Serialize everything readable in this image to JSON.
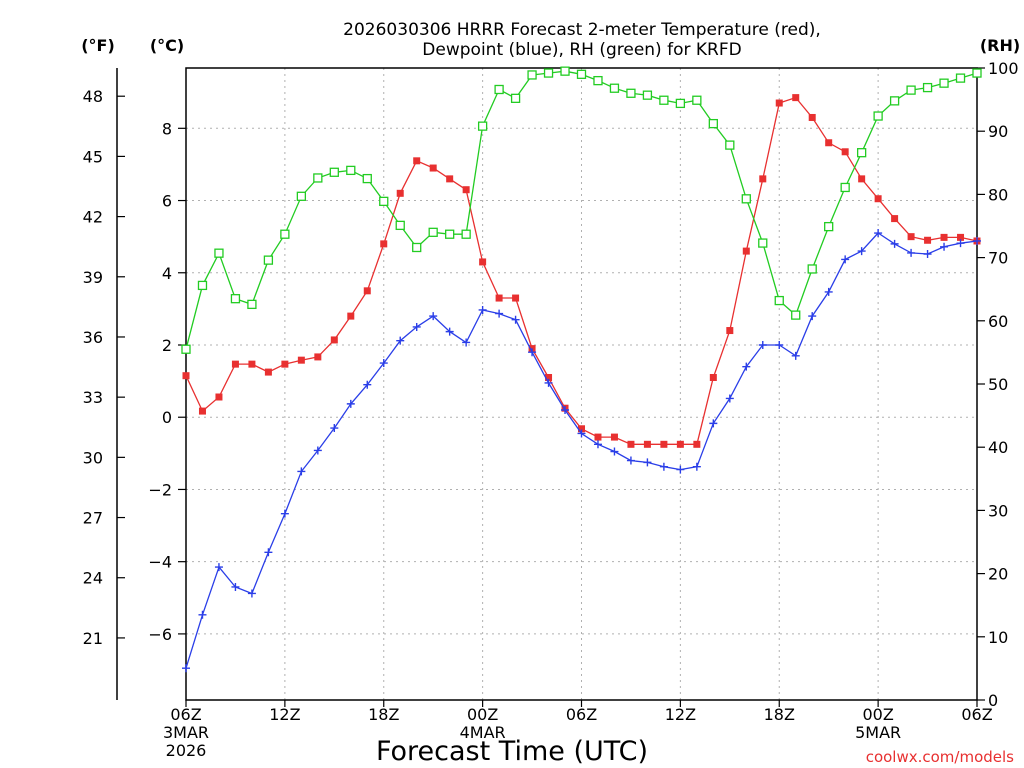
{
  "chart_data": {
    "type": "line",
    "title_line1": "2026030306 HRRR Forecast 2-meter Temperature (red),",
    "title_line2": "Dewpoint (blue), RH (green) for KRFD",
    "left_outer_unit": "(°F)",
    "left_inner_unit": "(°C)",
    "right_unit": "(RH)",
    "xlabel": "Forecast Time (UTC)",
    "credit": "coolwx.com/models",
    "x_hours_range": [
      6,
      54
    ],
    "celsius_range": [
      -7.83,
      9.67
    ],
    "rh_range": [
      0,
      100
    ],
    "celsius_ticks": [
      -6,
      -4,
      -2,
      0,
      2,
      4,
      6,
      8
    ],
    "fahrenheit_ticks": [
      21,
      24,
      27,
      30,
      33,
      36,
      39,
      42,
      45,
      48
    ],
    "rh_ticks": [
      0,
      10,
      20,
      30,
      40,
      50,
      60,
      70,
      80,
      90,
      100
    ],
    "x_ticks": [
      {
        "hour": 6,
        "label": "06Z",
        "date": "3MAR",
        "year": "2026"
      },
      {
        "hour": 12,
        "label": "12Z",
        "date": "",
        "year": ""
      },
      {
        "hour": 18,
        "label": "18Z",
        "date": "",
        "year": ""
      },
      {
        "hour": 24,
        "label": "00Z",
        "date": "4MAR",
        "year": ""
      },
      {
        "hour": 30,
        "label": "06Z",
        "date": "",
        "year": ""
      },
      {
        "hour": 36,
        "label": "12Z",
        "date": "",
        "year": ""
      },
      {
        "hour": 42,
        "label": "18Z",
        "date": "",
        "year": ""
      },
      {
        "hour": 48,
        "label": "00Z",
        "date": "5MAR",
        "year": ""
      },
      {
        "hour": 54,
        "label": "06Z",
        "date": "",
        "year": ""
      }
    ],
    "series": [
      {
        "name": "Temperature",
        "unit": "C",
        "color": "#e83030",
        "marker": "filled-square",
        "x": [
          6,
          7,
          8,
          9,
          10,
          11,
          12,
          13,
          14,
          15,
          16,
          17,
          18,
          19,
          20,
          21,
          22,
          23,
          24,
          25,
          26,
          27,
          28,
          29,
          30,
          31,
          32,
          33,
          34,
          35,
          36,
          37,
          38,
          39,
          40,
          41,
          42,
          43,
          44,
          45,
          46,
          47,
          48,
          49,
          50,
          51,
          52,
          53,
          54
        ],
        "values": [
          1.15,
          0.17,
          0.56,
          1.47,
          1.47,
          1.25,
          1.47,
          1.58,
          1.67,
          2.14,
          2.8,
          3.5,
          4.8,
          6.2,
          7.1,
          6.9,
          6.6,
          6.3,
          4.3,
          3.3,
          3.3,
          1.9,
          1.1,
          0.25,
          -0.32,
          -0.55,
          -0.55,
          -0.75,
          -0.75,
          -0.75,
          -0.75,
          -0.75,
          1.1,
          2.4,
          4.6,
          6.6,
          8.7,
          8.85,
          8.3,
          7.6,
          7.35,
          6.6,
          6.05,
          5.5,
          5.0,
          4.9,
          4.98,
          4.98,
          4.88
        ]
      },
      {
        "name": "Dewpoint",
        "unit": "C",
        "color": "#2a3ee8",
        "marker": "plus",
        "x": [
          6,
          7,
          8,
          9,
          10,
          11,
          12,
          13,
          14,
          15,
          16,
          17,
          18,
          19,
          20,
          21,
          22,
          23,
          24,
          25,
          26,
          27,
          28,
          29,
          30,
          31,
          32,
          33,
          34,
          35,
          36,
          37,
          38,
          39,
          40,
          41,
          42,
          43,
          44,
          45,
          46,
          47,
          48,
          49,
          50,
          51,
          52,
          53,
          54
        ],
        "values": [
          -6.95,
          -5.47,
          -4.15,
          -4.7,
          -4.88,
          -3.74,
          -2.67,
          -1.5,
          -0.92,
          -0.3,
          0.37,
          0.9,
          1.5,
          2.12,
          2.5,
          2.8,
          2.37,
          2.07,
          2.97,
          2.87,
          2.7,
          1.8,
          0.95,
          0.2,
          -0.45,
          -0.75,
          -0.95,
          -1.2,
          -1.25,
          -1.37,
          -1.45,
          -1.37,
          -0.17,
          0.52,
          1.4,
          2.0,
          2.0,
          1.7,
          2.8,
          3.47,
          4.37,
          4.6,
          5.1,
          4.8,
          4.55,
          4.52,
          4.72,
          4.82,
          4.88
        ]
      },
      {
        "name": "RH",
        "unit": "%",
        "color": "#22cc22",
        "marker": "open-square",
        "x": [
          6,
          7,
          8,
          9,
          10,
          11,
          12,
          13,
          14,
          15,
          16,
          17,
          18,
          19,
          20,
          21,
          22,
          23,
          24,
          25,
          26,
          27,
          28,
          29,
          30,
          31,
          32,
          33,
          34,
          35,
          36,
          37,
          38,
          39,
          40,
          41,
          42,
          43,
          44,
          45,
          46,
          47,
          48,
          49,
          50,
          51,
          52,
          53,
          54
        ],
        "values": [
          55.5,
          65.6,
          70.7,
          63.5,
          62.6,
          69.6,
          73.7,
          79.7,
          82.6,
          83.5,
          83.8,
          82.5,
          78.9,
          75.1,
          71.6,
          74.0,
          73.7,
          73.7,
          90.8,
          96.6,
          95.2,
          98.9,
          99.2,
          99.5,
          99.0,
          98.0,
          96.8,
          96.0,
          95.7,
          94.9,
          94.4,
          94.9,
          91.2,
          87.8,
          79.3,
          72.3,
          63.2,
          60.9,
          68.2,
          74.9,
          81.1,
          86.6,
          92.4,
          94.8,
          96.5,
          96.9,
          97.6,
          98.4,
          99.2
        ]
      }
    ]
  }
}
